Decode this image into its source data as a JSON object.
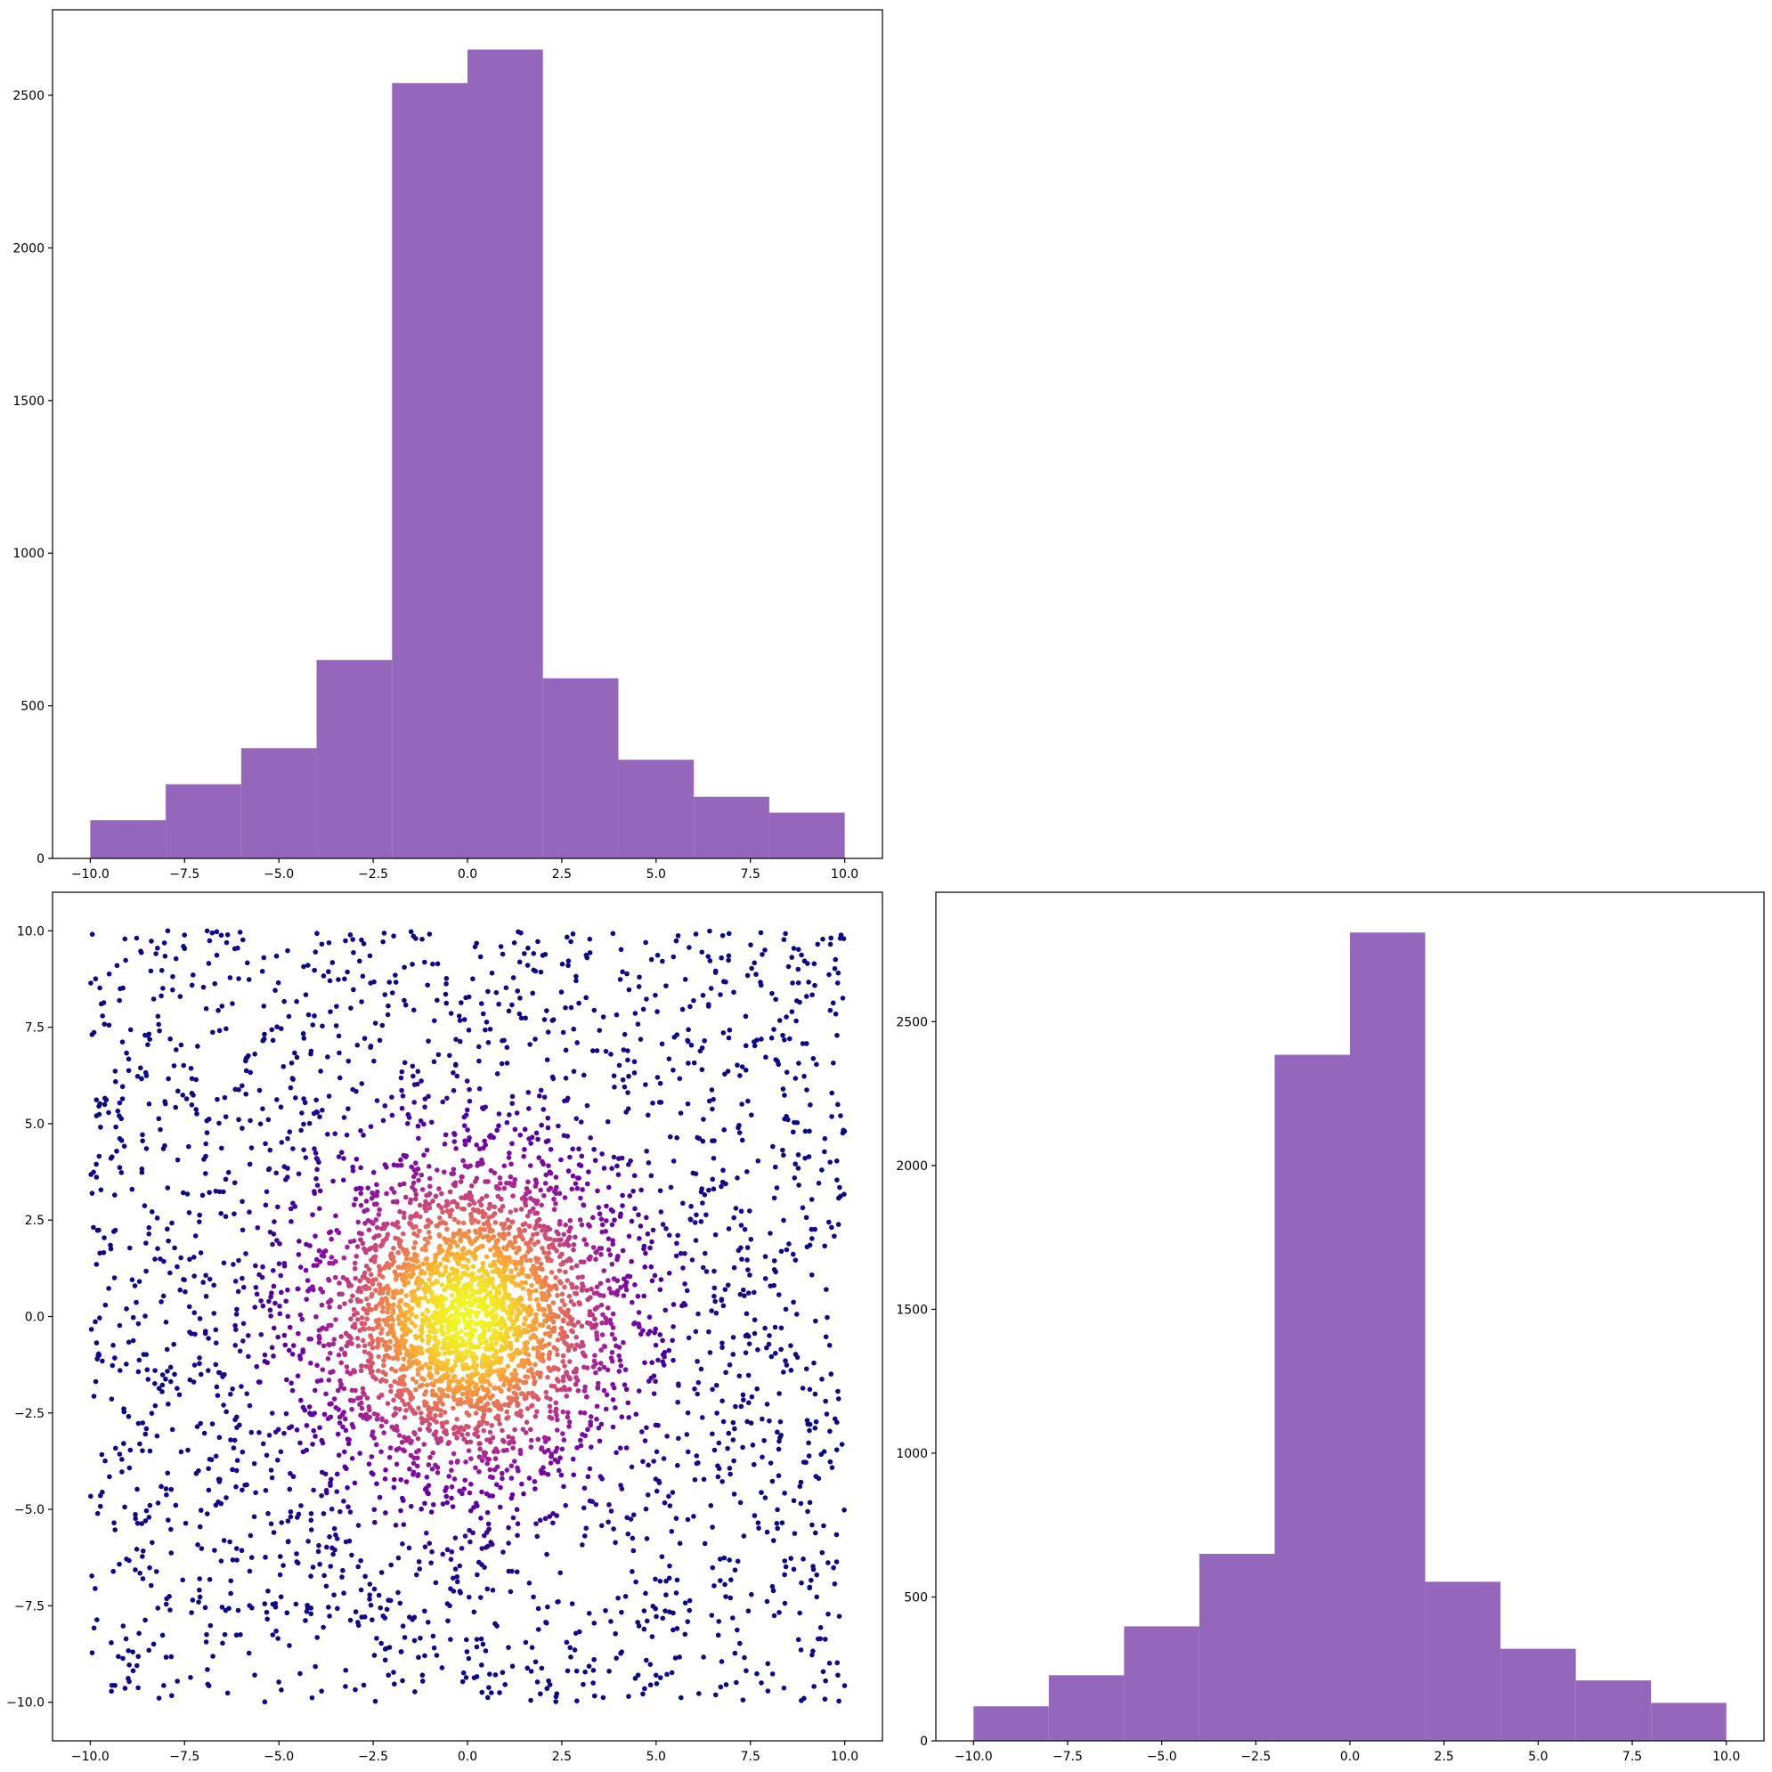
{
  "chart_data": [
    {
      "panel": "top-left",
      "type": "histogram",
      "title": "",
      "xlabel": "",
      "ylabel": "",
      "bin_edges": [
        -10,
        -8,
        -6,
        -4,
        -2,
        0,
        2,
        4,
        6,
        8,
        10
      ],
      "values": [
        125,
        243,
        361,
        650,
        2540,
        2650,
        590,
        323,
        202,
        150
      ],
      "color": "#9467bd",
      "xlim": [
        -11,
        11
      ],
      "ylim": [
        0,
        2780
      ],
      "xticks": [
        -10.0,
        -7.5,
        -5.0,
        -2.5,
        0.0,
        2.5,
        5.0,
        7.5,
        10.0
      ],
      "xtick_labels": [
        "−10.0",
        "−7.5",
        "−5.0",
        "−2.5",
        "0.0",
        "2.5",
        "5.0",
        "7.5",
        "10.0"
      ],
      "yticks": [
        0,
        500,
        1000,
        1500,
        2000,
        2500
      ],
      "ytick_labels": [
        "0",
        "500",
        "1000",
        "1500",
        "2000",
        "2500"
      ],
      "grid": false
    },
    {
      "panel": "bottom-left",
      "type": "scatter",
      "title": "",
      "xlabel": "",
      "ylabel": "",
      "n_points": 5000,
      "distribution": "mixture: 50% normal(0, 2) and 50% uniform[-10, 10] on each axis",
      "color_encoding": "point density (plasma colormap: low = dark purple, high = yellow)",
      "colormap": [
        "#0d0887",
        "#6a00a8",
        "#b12a90",
        "#e16462",
        "#fca636",
        "#f0f921"
      ],
      "xlim": [
        -11,
        11
      ],
      "ylim": [
        -11,
        11
      ],
      "xticks": [
        -10.0,
        -7.5,
        -5.0,
        -2.5,
        0.0,
        2.5,
        5.0,
        7.5,
        10.0
      ],
      "xtick_labels": [
        "−10.0",
        "−7.5",
        "−5.0",
        "−2.5",
        "0.0",
        "2.5",
        "5.0",
        "7.5",
        "10.0"
      ],
      "yticks": [
        -10.0,
        -7.5,
        -5.0,
        -2.5,
        0.0,
        2.5,
        5.0,
        7.5,
        10.0
      ],
      "ytick_labels": [
        "−10.0",
        "−7.5",
        "−5.0",
        "−2.5",
        "0.0",
        "2.5",
        "5.0",
        "7.5",
        "10.0"
      ],
      "grid": false
    },
    {
      "panel": "bottom-right",
      "type": "histogram",
      "title": "",
      "xlabel": "",
      "ylabel": "",
      "bin_edges": [
        -10,
        -8,
        -6,
        -4,
        -2,
        0,
        2,
        4,
        6,
        8,
        10
      ],
      "values": [
        120,
        228,
        398,
        650,
        2385,
        2810,
        553,
        320,
        210,
        132
      ],
      "color": "#9467bd",
      "xlim": [
        -11,
        11
      ],
      "ylim": [
        0,
        2950
      ],
      "xticks": [
        -10.0,
        -7.5,
        -5.0,
        -2.5,
        0.0,
        2.5,
        5.0,
        7.5,
        10.0
      ],
      "xtick_labels": [
        "−10.0",
        "−7.5",
        "−5.0",
        "−2.5",
        "0.0",
        "2.5",
        "5.0",
        "7.5",
        "10.0"
      ],
      "yticks": [
        0,
        500,
        1000,
        1500,
        2000,
        2500
      ],
      "ytick_labels": [
        "0",
        "500",
        "1000",
        "1500",
        "2000",
        "2500"
      ],
      "grid": false
    }
  ]
}
